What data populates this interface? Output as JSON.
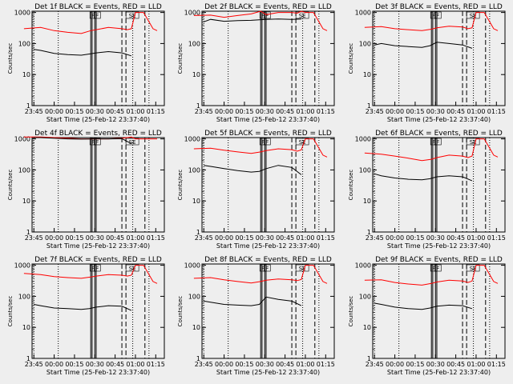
{
  "colors": {
    "events": "#000000",
    "lld": "#ff0000",
    "axis": "#000000",
    "background": "#eeeeee"
  },
  "x_axis_title": "Start Time (25-Feb-12 23:37:40)",
  "y_axis_title": "Counts/sec",
  "x_ticks": [
    "23:45",
    "00:00",
    "00:15",
    "00:30",
    "00:45",
    "01:00",
    "01:15"
  ],
  "y_ticks": [
    "1",
    "10",
    "100",
    "1000"
  ],
  "event_labels": [
    "F",
    "F",
    "SE"
  ],
  "chart_data": [
    {
      "type": "line",
      "title": "Det 1f BLACK = Events, RED = LLD",
      "xlabel": "Start Time (25-Feb-12 23:37:40)",
      "ylabel": "Counts/sec",
      "yscale": "log",
      "ylim": [
        1,
        1100
      ],
      "x_ticks": [
        "23:45",
        "00:00",
        "00:15",
        "00:30",
        "00:45",
        "01:00",
        "01:15"
      ],
      "series": [
        {
          "name": "LLD",
          "color": "#ff0000",
          "x": [
            "23:37:40",
            "23:50",
            "00:00",
            "00:10",
            "00:20",
            "00:27",
            "00:31",
            "00:40",
            "00:50",
            "00:54",
            "00:57",
            "01:00",
            "01:06",
            "01:10",
            "01:13",
            "01:16"
          ],
          "y": [
            300,
            330,
            260,
            230,
            210,
            260,
            280,
            330,
            300,
            280,
            300,
            1000,
            1000,
            500,
            300,
            260
          ]
        },
        {
          "name": "Events",
          "color": "#000000",
          "x": [
            "23:45",
            "23:50",
            "00:00",
            "00:10",
            "00:20",
            "00:26",
            "00:31",
            "00:40",
            "00:50",
            "00:57"
          ],
          "y": [
            65,
            60,
            48,
            44,
            42,
            46,
            50,
            55,
            50,
            40
          ]
        }
      ]
    },
    {
      "type": "line",
      "title": "Det 2f BLACK = Events, RED = LLD",
      "xlabel": "Start Time (25-Feb-12 23:37:40)",
      "ylabel": "Counts/sec",
      "yscale": "log",
      "ylim": [
        1,
        1100
      ],
      "x_ticks": [
        "23:45",
        "00:00",
        "00:15",
        "00:30",
        "00:45",
        "01:00",
        "01:15"
      ],
      "series": [
        {
          "name": "LLD",
          "color": "#ff0000",
          "x": [
            "23:37:40",
            "23:50",
            "00:00",
            "00:10",
            "00:20",
            "00:27",
            "00:31",
            "00:40",
            "00:50",
            "00:54",
            "00:57",
            "01:00",
            "01:06",
            "01:10",
            "01:13",
            "01:16"
          ],
          "y": [
            800,
            820,
            700,
            800,
            900,
            1100,
            850,
            1000,
            1000,
            950,
            1100,
            1000,
            1000,
            500,
            300,
            260
          ]
        },
        {
          "name": "Events",
          "color": "#000000",
          "x": [
            "23:45",
            "23:50",
            "00:00",
            "00:10",
            "00:20",
            "00:26",
            "00:31",
            "00:40",
            "00:50",
            "00:57"
          ],
          "y": [
            500,
            600,
            520,
            550,
            560,
            580,
            600,
            620,
            600,
            620
          ]
        }
      ]
    },
    {
      "type": "line",
      "title": "Det 3f BLACK = Events, RED = LLD",
      "xlabel": "Start Time (25-Feb-12 23:37:40)",
      "ylabel": "Counts/sec",
      "yscale": "log",
      "ylim": [
        1,
        1100
      ],
      "x_ticks": [
        "23:45",
        "00:00",
        "00:15",
        "00:30",
        "00:45",
        "01:00",
        "01:15"
      ],
      "series": [
        {
          "name": "LLD",
          "color": "#ff0000",
          "x": [
            "23:37:40",
            "23:50",
            "00:00",
            "00:10",
            "00:20",
            "00:27",
            "00:31",
            "00:40",
            "00:50",
            "00:54",
            "00:57",
            "01:00",
            "01:06",
            "01:10",
            "01:13",
            "01:16"
          ],
          "y": [
            330,
            350,
            300,
            280,
            260,
            290,
            320,
            360,
            340,
            300,
            320,
            1000,
            1000,
            500,
            300,
            260
          ]
        },
        {
          "name": "Events",
          "color": "#000000",
          "x": [
            "23:45",
            "23:50",
            "00:00",
            "00:10",
            "00:20",
            "00:26",
            "00:31",
            "00:40",
            "00:50",
            "00:57"
          ],
          "y": [
            90,
            100,
            85,
            80,
            75,
            85,
            110,
            100,
            90,
            70
          ]
        }
      ]
    },
    {
      "type": "line",
      "title": "Det 4f BLACK = Events, RED = LLD",
      "xlabel": "Start Time (25-Feb-12 23:37:40)",
      "ylabel": "Counts/sec",
      "yscale": "log",
      "ylim": [
        1,
        1100
      ],
      "x_ticks": [
        "23:45",
        "00:00",
        "00:15",
        "00:30",
        "00:45",
        "01:00",
        "01:15"
      ],
      "series": [
        {
          "name": "LLD",
          "color": "#ff0000",
          "x": [
            "23:37:40",
            "23:50",
            "00:00",
            "00:10",
            "00:20",
            "00:27",
            "00:31",
            "00:40",
            "00:50",
            "00:54",
            "00:57",
            "01:00",
            "01:06",
            "01:10",
            "01:13",
            "01:16"
          ],
          "y": [
            1150,
            1150,
            1100,
            1050,
            1000,
            1000,
            1000,
            1000,
            1050,
            1100,
            1150,
            1000,
            1000,
            1000,
            1000,
            1000
          ]
        },
        {
          "name": "Events",
          "color": "#000000",
          "x": [
            "23:45",
            "23:50",
            "00:00",
            "00:10",
            "00:20",
            "00:26",
            "00:31",
            "00:40",
            "00:50",
            "00:57"
          ],
          "y": [
            1100,
            1100,
            1050,
            1000,
            980,
            990,
            1000,
            1000,
            1020,
            700
          ]
        }
      ]
    },
    {
      "type": "line",
      "title": "Det 5f BLACK = Events, RED = LLD",
      "xlabel": "Start Time (25-Feb-12 23:37:40)",
      "ylabel": "Counts/sec",
      "yscale": "log",
      "ylim": [
        1,
        1100
      ],
      "x_ticks": [
        "23:45",
        "00:00",
        "00:15",
        "00:30",
        "00:45",
        "01:00",
        "01:15"
      ],
      "series": [
        {
          "name": "LLD",
          "color": "#ff0000",
          "x": [
            "23:37:40",
            "23:50",
            "00:00",
            "00:10",
            "00:20",
            "00:27",
            "00:31",
            "00:40",
            "00:50",
            "00:54",
            "00:57",
            "01:00",
            "01:06",
            "01:10",
            "01:13",
            "01:16"
          ],
          "y": [
            480,
            500,
            430,
            380,
            340,
            380,
            420,
            480,
            450,
            400,
            440,
            1000,
            1000,
            500,
            300,
            260
          ]
        },
        {
          "name": "Events",
          "color": "#000000",
          "x": [
            "23:45",
            "23:50",
            "00:00",
            "00:10",
            "00:20",
            "00:26",
            "00:31",
            "00:40",
            "00:50",
            "00:57"
          ],
          "y": [
            140,
            130,
            110,
            95,
            85,
            90,
            110,
            140,
            120,
            70
          ]
        }
      ]
    },
    {
      "type": "line",
      "title": "Det 6f BLACK = Events, RED = LLD",
      "xlabel": "Start Time (25-Feb-12 23:37:40)",
      "ylabel": "Counts/sec",
      "yscale": "log",
      "ylim": [
        1,
        1100
      ],
      "x_ticks": [
        "23:45",
        "00:00",
        "00:15",
        "00:30",
        "00:45",
        "01:00",
        "01:15"
      ],
      "series": [
        {
          "name": "LLD",
          "color": "#ff0000",
          "x": [
            "23:37:40",
            "23:50",
            "00:00",
            "00:10",
            "00:20",
            "00:27",
            "00:31",
            "00:40",
            "00:50",
            "00:54",
            "00:57",
            "01:00",
            "01:06",
            "01:10",
            "01:13",
            "01:16"
          ],
          "y": [
            350,
            320,
            280,
            240,
            200,
            220,
            250,
            300,
            280,
            250,
            280,
            1000,
            1000,
            500,
            300,
            260
          ]
        },
        {
          "name": "Events",
          "color": "#000000",
          "x": [
            "23:45",
            "23:50",
            "00:00",
            "00:10",
            "00:20",
            "00:26",
            "00:31",
            "00:40",
            "00:50",
            "00:57"
          ],
          "y": [
            75,
            65,
            55,
            50,
            48,
            52,
            60,
            65,
            60,
            45
          ]
        }
      ]
    },
    {
      "type": "line",
      "title": "Det 7f BLACK = Events, RED = LLD",
      "xlabel": "Start Time (25-Feb-12 23:37:40)",
      "ylabel": "Counts/sec",
      "yscale": "log",
      "ylim": [
        1,
        1100
      ],
      "x_ticks": [
        "23:45",
        "00:00",
        "00:15",
        "00:30",
        "00:45",
        "01:00",
        "01:15"
      ],
      "series": [
        {
          "name": "LLD",
          "color": "#ff0000",
          "x": [
            "23:37:40",
            "23:50",
            "00:00",
            "00:10",
            "00:20",
            "00:27",
            "00:31",
            "00:40",
            "00:50",
            "00:54",
            "00:57",
            "01:00",
            "01:06",
            "01:10",
            "01:13",
            "01:16"
          ],
          "y": [
            550,
            500,
            430,
            400,
            380,
            420,
            450,
            500,
            480,
            450,
            480,
            1000,
            1000,
            500,
            300,
            260
          ]
        },
        {
          "name": "Events",
          "color": "#000000",
          "x": [
            "23:45",
            "23:50",
            "00:00",
            "00:10",
            "00:20",
            "00:26",
            "00:31",
            "00:40",
            "00:50",
            "00:57"
          ],
          "y": [
            55,
            50,
            42,
            40,
            38,
            40,
            45,
            50,
            48,
            35
          ]
        }
      ]
    },
    {
      "type": "line",
      "title": "Det 8f BLACK = Events, RED = LLD",
      "xlabel": "Start Time (25-Feb-12 23:37:40)",
      "ylabel": "Counts/sec",
      "yscale": "log",
      "ylim": [
        1,
        1100
      ],
      "x_ticks": [
        "23:45",
        "00:00",
        "00:15",
        "00:30",
        "00:45",
        "01:00",
        "01:15"
      ],
      "series": [
        {
          "name": "LLD",
          "color": "#ff0000",
          "x": [
            "23:37:40",
            "23:50",
            "00:00",
            "00:10",
            "00:20",
            "00:27",
            "00:31",
            "00:40",
            "00:50",
            "00:54",
            "00:57",
            "01:00",
            "01:06",
            "01:10",
            "01:13",
            "01:16"
          ],
          "y": [
            380,
            400,
            340,
            300,
            270,
            300,
            330,
            360,
            340,
            320,
            350,
            1000,
            1000,
            500,
            300,
            260
          ]
        },
        {
          "name": "Events",
          "color": "#000000",
          "x": [
            "23:45",
            "23:50",
            "00:00",
            "00:10",
            "00:20",
            "00:26",
            "00:31",
            "00:40",
            "00:50",
            "00:57"
          ],
          "y": [
            70,
            65,
            55,
            52,
            50,
            55,
            95,
            80,
            70,
            50
          ]
        }
      ]
    },
    {
      "type": "line",
      "title": "Det 9f BLACK = Events, RED = LLD",
      "xlabel": "Start Time (25-Feb-12 23:37:40)",
      "ylabel": "Counts/sec",
      "yscale": "log",
      "ylim": [
        1,
        1100
      ],
      "x_ticks": [
        "23:45",
        "00:00",
        "00:15",
        "00:30",
        "00:45",
        "01:00",
        "01:15"
      ],
      "series": [
        {
          "name": "LLD",
          "color": "#ff0000",
          "x": [
            "23:37:40",
            "23:50",
            "00:00",
            "00:10",
            "00:20",
            "00:27",
            "00:31",
            "00:40",
            "00:50",
            "00:54",
            "00:57",
            "01:00",
            "01:06",
            "01:10",
            "01:13",
            "01:16"
          ],
          "y": [
            330,
            340,
            280,
            250,
            230,
            260,
            290,
            330,
            310,
            280,
            310,
            1000,
            1000,
            500,
            300,
            260
          ]
        },
        {
          "name": "Events",
          "color": "#000000",
          "x": [
            "23:45",
            "23:50",
            "00:00",
            "00:10",
            "00:20",
            "00:26",
            "00:31",
            "00:40",
            "00:50",
            "00:57"
          ],
          "y": [
            60,
            55,
            45,
            40,
            38,
            42,
            48,
            52,
            50,
            40
          ]
        }
      ]
    }
  ],
  "markers": {
    "dotted": [
      "23:45",
      "00:03",
      "00:58",
      "01:10"
    ],
    "solid": [
      "00:27",
      "00:28",
      "00:30",
      "00:31"
    ],
    "dashed": [
      "00:50",
      "00:53",
      "01:07"
    ]
  }
}
